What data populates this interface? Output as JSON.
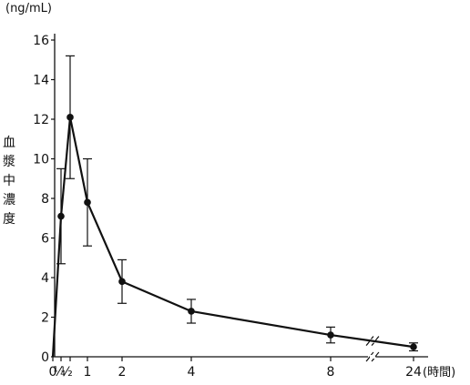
{
  "chart_data": {
    "type": "line",
    "ylabel_unit": "(ng/mL)",
    "ylabel": [
      "血",
      "漿",
      "中",
      "濃",
      "度"
    ],
    "xlabel": "",
    "x_unit": "(時間)",
    "ylim": [
      0,
      16
    ],
    "y_ticks": [
      0,
      2,
      4,
      6,
      8,
      10,
      12,
      14,
      16
    ],
    "y_tick_labels": [
      "0",
      "2",
      "4",
      "6",
      "8",
      "10",
      "12",
      "14",
      "16"
    ],
    "x_ticks": [
      0,
      0.25,
      0.5,
      1,
      2,
      4,
      8,
      24
    ],
    "x_tick_labels": [
      "0",
      "¼",
      "½",
      "1",
      "2",
      "4",
      "8",
      "24"
    ],
    "axis_break": "between 8 and 24",
    "grid": false,
    "series": [
      {
        "x": [
          0,
          0.25,
          0.5,
          1,
          2,
          4,
          8,
          12,
          24
        ],
        "y": [
          0,
          7.1,
          12.1,
          7.8,
          3.8,
          2.3,
          1.1,
          0.8,
          0.5
        ],
        "error": [
          null,
          2.4,
          3.1,
          2.2,
          1.1,
          0.6,
          0.4,
          null,
          0.2
        ],
        "marker": [
          false,
          true,
          true,
          true,
          true,
          true,
          true,
          false,
          true
        ]
      }
    ],
    "line_color": "#111111"
  }
}
